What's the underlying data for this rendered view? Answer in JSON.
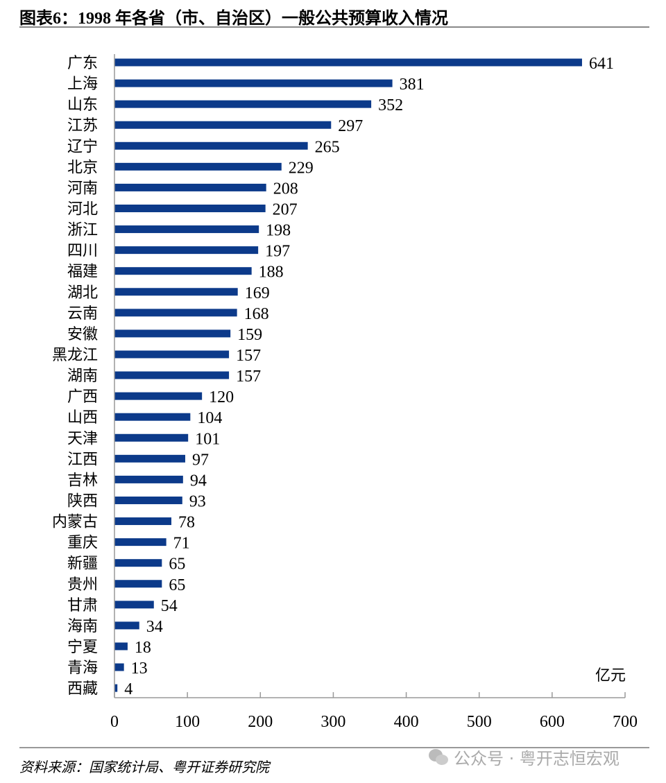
{
  "title": "图表6：1998 年各省（市、自治区）一般公共预算收入情况",
  "source": "资料来源：国家统计局、粤开证券研究院",
  "watermark": "公众号 · 粤开志恒宏观",
  "colors": {
    "bar": "#0c3a8a",
    "axis": "#999999"
  },
  "chart_data": {
    "type": "bar",
    "orientation": "horizontal",
    "title": "1998 年各省（市、自治区）一般公共预算收入情况",
    "unit": "亿元",
    "categories": [
      "广东",
      "上海",
      "山东",
      "江苏",
      "辽宁",
      "北京",
      "河南",
      "河北",
      "浙江",
      "四川",
      "福建",
      "湖北",
      "云南",
      "安徽",
      "黑龙江",
      "湖南",
      "广西",
      "山西",
      "天津",
      "江西",
      "吉林",
      "陕西",
      "内蒙古",
      "重庆",
      "新疆",
      "贵州",
      "甘肃",
      "海南",
      "宁夏",
      "青海",
      "西藏"
    ],
    "values": [
      641,
      381,
      352,
      297,
      265,
      229,
      208,
      207,
      198,
      197,
      188,
      169,
      168,
      159,
      157,
      157,
      120,
      104,
      101,
      97,
      94,
      93,
      78,
      71,
      65,
      65,
      54,
      34,
      18,
      13,
      4
    ],
    "xlim": [
      0,
      700
    ],
    "xticks": [
      "0",
      "100",
      "200",
      "300",
      "400",
      "500",
      "600",
      "700"
    ],
    "grid": false,
    "data_labels": true
  }
}
